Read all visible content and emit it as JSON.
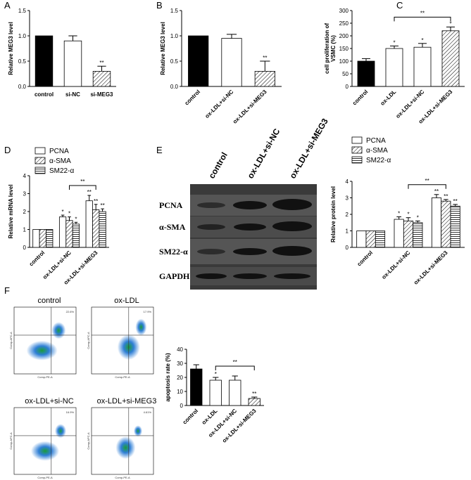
{
  "chart_data": [
    {
      "panel": "A",
      "type": "bar",
      "ylabel": [
        "Relative MEG3 level"
      ],
      "categories": [
        "control",
        "si-NC",
        "si-MEG3"
      ],
      "values": [
        1.0,
        0.9,
        0.3
      ],
      "errors": [
        null,
        0.1,
        0.1
      ],
      "colors": [
        "#000000",
        "#ffffff",
        "#ffffff"
      ],
      "hatch": [
        null,
        null,
        "diagonal"
      ],
      "stars": [
        null,
        null,
        "**"
      ],
      "ylim": [
        0,
        1.5
      ],
      "yticks": [
        {
          "value": 0,
          "label": "0.0"
        },
        0.5,
        {
          "value": 1,
          "label": "1.0"
        },
        1.5
      ]
    },
    {
      "panel": "B",
      "type": "bar",
      "ylabel": [
        "Relative MEG3 level"
      ],
      "categories": [
        "control",
        "ox-LDL+si-NC",
        "ox-LDL+si-MEG3"
      ],
      "values": [
        1.0,
        0.95,
        0.3
      ],
      "errors": [
        null,
        0.08,
        0.2
      ],
      "colors": [
        "#000000",
        "#ffffff",
        "#ffffff"
      ],
      "hatch": [
        null,
        null,
        "diagonal"
      ],
      "stars": [
        null,
        null,
        "**"
      ],
      "ylim": [
        0,
        1.5
      ],
      "yticks": [
        {
          "value": 0,
          "label": "0.0"
        },
        0.5,
        {
          "value": 1,
          "label": "1.0"
        },
        1.5
      ]
    },
    {
      "panel": "C",
      "type": "bar",
      "ylabel": [
        "cell proliferation of",
        "VSMC (%)"
      ],
      "categories": [
        "control",
        "ox-LDL",
        "ox-LDL+si-NC",
        "ox-LDL+si-MEG3"
      ],
      "values": [
        100,
        150,
        155,
        220
      ],
      "errors": [
        10,
        10,
        15,
        15
      ],
      "colors": [
        "#000000",
        "#ffffff",
        "#ffffff",
        "#ffffff"
      ],
      "hatch": [
        null,
        null,
        null,
        "diagonal"
      ],
      "stars": [
        null,
        "*",
        "*",
        "*"
      ],
      "brackets": [
        {
          "from": 1,
          "to": 3,
          "label": "**"
        }
      ],
      "ylim": [
        0,
        300
      ],
      "yticks": [
        0,
        50,
        100,
        150,
        200,
        250,
        300
      ]
    },
    {
      "panel": "D",
      "type": "grouped-bar",
      "ylabel": [
        "Relative mRNA level"
      ],
      "categories": [
        "control",
        "ox-LDL+si-NC",
        "ox-LDL+si-MEG3"
      ],
      "series": [
        {
          "name": "PCNA",
          "color": "#ffffff",
          "hatch": null,
          "values": [
            1,
            1.7,
            2.6
          ],
          "errors": [
            null,
            0.1,
            0.3
          ],
          "stars": [
            null,
            "*",
            "**"
          ]
        },
        {
          "name": "α-SMA",
          "color": "#ffffff",
          "hatch": "diagonal",
          "values": [
            1,
            1.5,
            2.1
          ],
          "errors": [
            null,
            0.2,
            0.3
          ],
          "stars": [
            null,
            "*",
            "**"
          ]
        },
        {
          "name": "SM22-α",
          "color": "#ffffff",
          "hatch": "horizontal",
          "values": [
            1,
            1.3,
            2.0
          ],
          "errors": [
            null,
            0.1,
            0.15
          ],
          "stars": [
            null,
            "*",
            "**"
          ]
        }
      ],
      "brackets": [
        {
          "from": 1,
          "to": 2,
          "label": "**"
        }
      ],
      "ylim": [
        0,
        4
      ],
      "yticks": [
        0,
        1,
        2,
        3,
        4
      ]
    },
    {
      "panel": "E",
      "type": "grouped-bar",
      "ylabel": [
        "Relative protein level"
      ],
      "categories": [
        "control",
        "ox-LDL+si-NC",
        "ox-LDL+si-MEG3"
      ],
      "series": [
        {
          "name": "PCNA",
          "color": "#ffffff",
          "hatch": null,
          "values": [
            1,
            1.7,
            3.0
          ],
          "errors": [
            null,
            0.15,
            0.2
          ],
          "stars": [
            null,
            "*",
            "**"
          ]
        },
        {
          "name": "α-SMA",
          "color": "#ffffff",
          "hatch": "diagonal",
          "values": [
            1,
            1.6,
            2.8
          ],
          "errors": [
            null,
            0.2,
            0.1
          ],
          "stars": [
            null,
            "*",
            "**"
          ]
        },
        {
          "name": "SM22-α",
          "color": "#ffffff",
          "hatch": "horizontal",
          "values": [
            1,
            1.5,
            2.5
          ],
          "errors": [
            null,
            0.1,
            0.1
          ],
          "stars": [
            null,
            "*",
            "**"
          ]
        }
      ],
      "brackets": [
        {
          "from": 1,
          "to": 2,
          "label": "**"
        }
      ],
      "ylim": [
        0,
        4
      ],
      "yticks": [
        0,
        1,
        2,
        3,
        4
      ]
    },
    {
      "panel": "F",
      "type": "bar",
      "ylabel": [
        "apoptosis rate (%)"
      ],
      "categories": [
        "control",
        "ox-LDL",
        "ox-LDL+si-NC",
        "ox-LDL+si-MEG3"
      ],
      "values": [
        26,
        18,
        18,
        5
      ],
      "errors": [
        3,
        2,
        3,
        1
      ],
      "colors": [
        "#000000",
        "#ffffff",
        "#ffffff",
        "#ffffff"
      ],
      "hatch": [
        null,
        null,
        null,
        "diagonal"
      ],
      "stars": [
        null,
        "*",
        null,
        "**"
      ],
      "brackets": [
        {
          "from": 1,
          "to": 3,
          "label": "**"
        }
      ],
      "ylim": [
        0,
        40
      ],
      "yticks": [
        0,
        10,
        20,
        30,
        40
      ]
    }
  ],
  "blot": {
    "lanes": [
      "control",
      "ox-LDL+si-NC",
      "ox-LDL+si-MEG3"
    ],
    "rows": [
      "PCNA",
      "α-SMA",
      "SM22-α",
      "GAPDH"
    ]
  },
  "flow": {
    "plots": [
      {
        "title": "control",
        "corner": "22.6%"
      },
      {
        "title": "ox-LDL",
        "corner": "17.9%"
      },
      {
        "title": "ox-LDL+si-NC",
        "corner": "16.9%"
      },
      {
        "title": "ox-LDL+si-MEG3",
        "corner": "4.61%"
      }
    ],
    "xlabel": "Comp-PE-A",
    "ylabel": "Comp-APC-A"
  }
}
